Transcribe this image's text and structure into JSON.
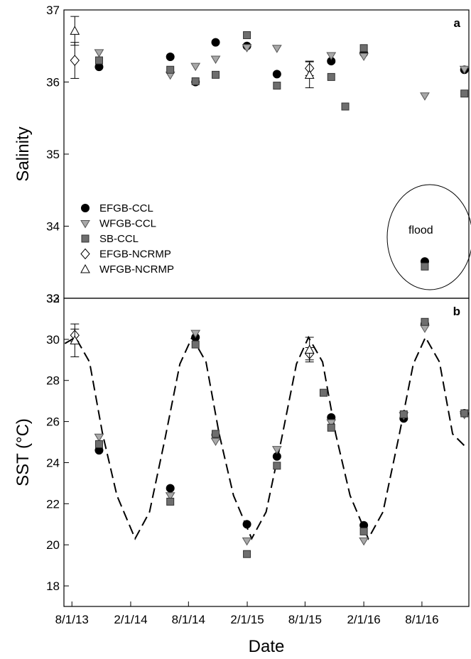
{
  "figure": {
    "xlabel": "Date",
    "x_ticks": [
      "8/1/13",
      "2/1/14",
      "8/1/14",
      "2/1/15",
      "8/1/15",
      "2/1/16",
      "8/1/16"
    ]
  },
  "chart_data": [
    {
      "type": "scatter",
      "panel": "a",
      "ylabel": "Salinity",
      "ylim": [
        33,
        37
      ],
      "yticks": [
        33,
        34,
        35,
        36,
        37
      ],
      "xlim": [
        "2013-07-07",
        "2016-12-26"
      ],
      "legend": {
        "placement": "lower-left",
        "entries": [
          {
            "name": "EFGB-CCL",
            "marker": "circle"
          },
          {
            "name": "WFGB-CCL",
            "marker": "triangle-down"
          },
          {
            "name": "SB-CCL",
            "marker": "square"
          },
          {
            "name": "EFGB-NCRMP",
            "marker": "diamond"
          },
          {
            "name": "WFGB-NCRMP",
            "marker": "triangle-up"
          }
        ]
      },
      "annotation": {
        "text": "flood"
      },
      "series": [
        {
          "name": "EFGB-CCL",
          "points": [
            {
              "x": "2013-10-25",
              "y": 36.21
            },
            {
              "x": "2014-06-05",
              "y": 36.35
            },
            {
              "x": "2014-08-23",
              "y": 36.0
            },
            {
              "x": "2014-10-25",
              "y": 36.55
            },
            {
              "x": "2015-01-31",
              "y": 36.5
            },
            {
              "x": "2015-05-05",
              "y": 36.11
            },
            {
              "x": "2015-10-22",
              "y": 36.29
            },
            {
              "x": "2016-02-01",
              "y": 36.4
            },
            {
              "x": "2016-08-10",
              "y": 33.51
            },
            {
              "x": "2016-12-12",
              "y": 36.17
            }
          ]
        },
        {
          "name": "WFGB-CCL",
          "points": [
            {
              "x": "2013-10-25",
              "y": 36.41
            },
            {
              "x": "2014-06-05",
              "y": 36.1
            },
            {
              "x": "2014-08-23",
              "y": 36.22
            },
            {
              "x": "2014-10-25",
              "y": 36.32
            },
            {
              "x": "2015-01-31",
              "y": 36.48
            },
            {
              "x": "2015-05-05",
              "y": 36.47
            },
            {
              "x": "2015-10-22",
              "y": 36.37
            },
            {
              "x": "2016-02-01",
              "y": 36.36
            },
            {
              "x": "2016-08-10",
              "y": 35.81
            },
            {
              "x": "2016-12-12",
              "y": 36.18
            }
          ]
        },
        {
          "name": "SB-CCL",
          "points": [
            {
              "x": "2013-10-25",
              "y": 36.3
            },
            {
              "x": "2014-06-05",
              "y": 36.17
            },
            {
              "x": "2014-08-23",
              "y": 36.01
            },
            {
              "x": "2014-10-25",
              "y": 36.1
            },
            {
              "x": "2015-01-31",
              "y": 36.65
            },
            {
              "x": "2015-05-05",
              "y": 35.95
            },
            {
              "x": "2015-10-22",
              "y": 36.07
            },
            {
              "x": "2015-12-05",
              "y": 35.66
            },
            {
              "x": "2016-02-01",
              "y": 36.47
            },
            {
              "x": "2016-08-10",
              "y": 33.44
            },
            {
              "x": "2016-12-12",
              "y": 35.84
            }
          ]
        },
        {
          "name": "EFGB-NCRMP",
          "points": [
            {
              "x": "2013-08-10",
              "y": 36.3,
              "err": 0.25
            },
            {
              "x": "2015-08-15",
              "y": 36.19,
              "err": 0.1
            }
          ]
        },
        {
          "name": "WFGB-NCRMP",
          "points": [
            {
              "x": "2013-08-10",
              "y": 36.71,
              "err": 0.2
            },
            {
              "x": "2015-08-15",
              "y": 36.1,
              "err": 0.18
            }
          ]
        }
      ]
    },
    {
      "type": "scatter",
      "panel": "b",
      "ylabel": "SST (°C)",
      "ylim": [
        17,
        32
      ],
      "yticks": [
        18,
        20,
        22,
        24,
        26,
        28,
        30,
        32
      ],
      "xlim": [
        "2013-07-07",
        "2016-12-26"
      ],
      "fit_line": {
        "style": "dashed",
        "points": [
          [
            "2013-07-10",
            29.8
          ],
          [
            "2013-08-12",
            30.1
          ],
          [
            "2013-09-25",
            28.9
          ],
          [
            "2013-11-05",
            25.4
          ],
          [
            "2013-12-20",
            22.4
          ],
          [
            "2014-02-15",
            20.3
          ],
          [
            "2014-04-01",
            21.6
          ],
          [
            "2014-05-20",
            25.2
          ],
          [
            "2014-07-05",
            28.8
          ],
          [
            "2014-08-12",
            30.1
          ],
          [
            "2014-09-25",
            28.9
          ],
          [
            "2014-11-05",
            25.4
          ],
          [
            "2014-12-20",
            22.4
          ],
          [
            "2015-02-15",
            20.3
          ],
          [
            "2015-04-01",
            21.6
          ],
          [
            "2015-05-20",
            25.2
          ],
          [
            "2015-07-05",
            28.8
          ],
          [
            "2015-08-12",
            30.1
          ],
          [
            "2015-09-25",
            28.9
          ],
          [
            "2015-11-05",
            25.4
          ],
          [
            "2015-12-20",
            22.4
          ],
          [
            "2016-02-15",
            20.3
          ],
          [
            "2016-04-01",
            21.6
          ],
          [
            "2016-05-20",
            25.2
          ],
          [
            "2016-07-05",
            28.8
          ],
          [
            "2016-08-12",
            30.1
          ],
          [
            "2016-09-25",
            28.9
          ],
          [
            "2016-11-05",
            25.4
          ],
          [
            "2016-12-20",
            24.7
          ]
        ]
      },
      "series": [
        {
          "name": "EFGB-CCL",
          "points": [
            {
              "x": "2013-10-25",
              "y": 24.6
            },
            {
              "x": "2014-06-05",
              "y": 22.75
            },
            {
              "x": "2014-08-23",
              "y": 30.1
            },
            {
              "x": "2014-10-25",
              "y": 25.35
            },
            {
              "x": "2015-01-31",
              "y": 21.0
            },
            {
              "x": "2015-05-05",
              "y": 24.3
            },
            {
              "x": "2015-10-22",
              "y": 26.2
            },
            {
              "x": "2016-02-01",
              "y": 20.95
            },
            {
              "x": "2016-06-05",
              "y": 26.15
            },
            {
              "x": "2016-08-10",
              "y": 30.75
            },
            {
              "x": "2016-12-12",
              "y": 26.4
            }
          ]
        },
        {
          "name": "WFGB-CCL",
          "points": [
            {
              "x": "2013-10-25",
              "y": 25.25
            },
            {
              "x": "2014-06-05",
              "y": 22.4
            },
            {
              "x": "2014-08-23",
              "y": 30.3
            },
            {
              "x": "2014-10-25",
              "y": 25.05
            },
            {
              "x": "2015-01-31",
              "y": 20.2
            },
            {
              "x": "2015-05-05",
              "y": 24.65
            },
            {
              "x": "2015-10-22",
              "y": 25.95
            },
            {
              "x": "2016-02-01",
              "y": 20.2
            },
            {
              "x": "2016-06-05",
              "y": 26.3
            },
            {
              "x": "2016-08-10",
              "y": 30.55
            },
            {
              "x": "2016-12-12",
              "y": 26.35
            }
          ]
        },
        {
          "name": "SB-CCL",
          "points": [
            {
              "x": "2013-10-25",
              "y": 24.9
            },
            {
              "x": "2014-06-05",
              "y": 22.1
            },
            {
              "x": "2014-08-23",
              "y": 29.75
            },
            {
              "x": "2014-10-25",
              "y": 25.4
            },
            {
              "x": "2015-01-31",
              "y": 19.55
            },
            {
              "x": "2015-05-05",
              "y": 23.85
            },
            {
              "x": "2015-09-28",
              "y": 27.4
            },
            {
              "x": "2015-10-22",
              "y": 25.7
            },
            {
              "x": "2016-02-01",
              "y": 20.65
            },
            {
              "x": "2016-06-05",
              "y": 26.35
            },
            {
              "x": "2016-08-10",
              "y": 30.85
            },
            {
              "x": "2016-12-12",
              "y": 26.4
            }
          ]
        },
        {
          "name": "EFGB-NCRMP",
          "points": [
            {
              "x": "2013-08-10",
              "y": 30.2,
              "err": 0.3
            },
            {
              "x": "2015-08-15",
              "y": 29.3,
              "err": 0.3
            }
          ]
        },
        {
          "name": "WFGB-NCRMP",
          "points": [
            {
              "x": "2013-08-10",
              "y": 29.95,
              "err": 0.8
            },
            {
              "x": "2015-08-15",
              "y": 29.5,
              "err": 0.6
            }
          ]
        }
      ]
    }
  ]
}
